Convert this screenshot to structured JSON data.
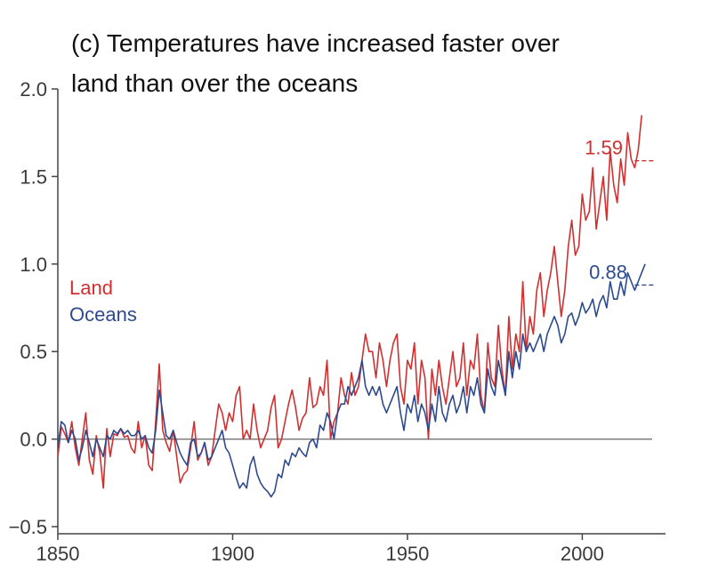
{
  "chart_data": {
    "type": "line",
    "title_lines": [
      "(c) Temperatures have increased faster over",
      "land than over the oceans"
    ],
    "xlim": [
      1850,
      2020
    ],
    "ylim": [
      -0.5,
      2.0
    ],
    "x_ticks": [
      1850,
      1900,
      1950,
      2000
    ],
    "x_tick_labels": [
      "1850",
      "1900",
      "1950",
      "2000"
    ],
    "y_ticks": [
      -0.5,
      0.0,
      0.5,
      1.0,
      1.5,
      2.0
    ],
    "y_tick_labels": [
      "−0.5",
      "0.0",
      "0.5",
      "1.0",
      "1.5",
      "2.0"
    ],
    "zero_line": 0.0,
    "legend_position": "left-middle",
    "series": [
      {
        "name": "Land",
        "color": "#d03030",
        "x_start": 1850,
        "end_value": 1.59,
        "end_value_label": "1.59",
        "values": [
          -0.1,
          0.07,
          0.03,
          -0.02,
          0.1,
          -0.05,
          -0.15,
          0.0,
          0.15,
          -0.12,
          -0.2,
          0.02,
          -0.08,
          -0.28,
          0.06,
          -0.1,
          0.03,
          0.02,
          0.06,
          0.01,
          0.02,
          -0.05,
          -0.08,
          0.1,
          -0.05,
          0.02,
          -0.15,
          -0.18,
          0.1,
          0.43,
          0.05,
          -0.02,
          -0.07,
          0.05,
          -0.1,
          -0.25,
          -0.2,
          -0.18,
          -0.05,
          0.1,
          -0.12,
          -0.08,
          -0.02,
          -0.15,
          -0.1,
          0.05,
          0.2,
          0.15,
          0.05,
          0.15,
          0.1,
          0.25,
          0.3,
          0.0,
          0.05,
          0.0,
          0.2,
          0.05,
          -0.05,
          0.0,
          0.05,
          0.18,
          0.25,
          -0.05,
          0.0,
          0.1,
          0.2,
          0.28,
          0.18,
          0.05,
          0.12,
          0.15,
          0.35,
          0.18,
          0.2,
          0.3,
          0.25,
          0.45,
          0.0,
          0.1,
          0.15,
          0.35,
          0.25,
          0.2,
          0.38,
          0.25,
          0.3,
          0.45,
          0.6,
          0.5,
          0.5,
          0.35,
          0.55,
          0.45,
          0.3,
          0.45,
          0.55,
          0.6,
          0.3,
          0.2,
          0.45,
          0.4,
          0.55,
          0.2,
          0.45,
          0.35,
          0.0,
          0.4,
          0.25,
          0.45,
          0.3,
          0.2,
          0.35,
          0.5,
          0.3,
          0.35,
          0.55,
          0.25,
          0.45,
          0.4,
          0.6,
          0.25,
          0.15,
          0.55,
          0.35,
          0.3,
          0.65,
          0.4,
          0.25,
          0.7,
          0.4,
          0.6,
          0.5,
          0.9,
          0.5,
          0.7,
          0.6,
          0.85,
          0.95,
          0.7,
          0.85,
          0.95,
          1.1,
          0.9,
          0.7,
          0.85,
          1.1,
          1.25,
          1.05,
          1.1,
          1.4,
          1.25,
          1.3,
          1.55,
          1.2,
          1.35,
          1.5,
          1.25,
          1.65,
          1.45,
          1.35,
          1.6,
          1.45,
          1.75,
          1.6,
          1.55,
          1.65,
          1.85
        ]
      },
      {
        "name": "Oceans",
        "color": "#2e4a8e",
        "x_start": 1850,
        "end_value": 0.88,
        "end_value_label": "0.88",
        "values": [
          -0.05,
          0.1,
          0.08,
          -0.02,
          0.05,
          0.0,
          -0.12,
          -0.05,
          0.05,
          -0.02,
          -0.1,
          0.0,
          -0.05,
          -0.1,
          0.02,
          0.0,
          0.05,
          0.03,
          0.06,
          0.03,
          0.05,
          0.02,
          0.02,
          0.05,
          0.0,
          0.02,
          -0.05,
          -0.08,
          0.05,
          0.28,
          0.15,
          0.02,
          0.0,
          0.05,
          -0.02,
          -0.08,
          -0.12,
          -0.15,
          -0.02,
          0.0,
          -0.1,
          -0.08,
          -0.02,
          -0.12,
          -0.1,
          -0.05,
          0.0,
          0.05,
          -0.05,
          -0.08,
          -0.15,
          -0.22,
          -0.28,
          -0.25,
          -0.28,
          -0.15,
          -0.1,
          -0.2,
          -0.25,
          -0.28,
          -0.3,
          -0.33,
          -0.3,
          -0.2,
          -0.22,
          -0.12,
          -0.15,
          -0.08,
          -0.1,
          -0.05,
          -0.08,
          -0.1,
          -0.02,
          0.0,
          -0.05,
          0.08,
          0.05,
          0.15,
          0.1,
          0.0,
          0.15,
          0.2,
          0.2,
          0.3,
          0.25,
          0.3,
          0.35,
          0.45,
          0.3,
          0.25,
          0.3,
          0.25,
          0.3,
          0.2,
          0.15,
          0.2,
          0.25,
          0.3,
          0.15,
          0.05,
          0.2,
          0.15,
          0.25,
          0.1,
          0.2,
          0.15,
          0.05,
          0.2,
          0.1,
          0.3,
          0.15,
          0.1,
          0.2,
          0.25,
          0.15,
          0.2,
          0.3,
          0.15,
          0.3,
          0.25,
          0.35,
          0.2,
          0.15,
          0.4,
          0.3,
          0.25,
          0.45,
          0.35,
          0.25,
          0.5,
          0.35,
          0.5,
          0.4,
          0.6,
          0.5,
          0.55,
          0.5,
          0.55,
          0.6,
          0.5,
          0.6,
          0.65,
          0.7,
          0.65,
          0.55,
          0.6,
          0.7,
          0.72,
          0.65,
          0.7,
          0.78,
          0.72,
          0.75,
          0.8,
          0.7,
          0.78,
          0.82,
          0.75,
          0.9,
          0.8,
          0.8,
          0.9,
          0.82,
          0.95,
          0.9,
          0.85,
          0.9,
          0.95,
          1.0
        ]
      }
    ]
  }
}
